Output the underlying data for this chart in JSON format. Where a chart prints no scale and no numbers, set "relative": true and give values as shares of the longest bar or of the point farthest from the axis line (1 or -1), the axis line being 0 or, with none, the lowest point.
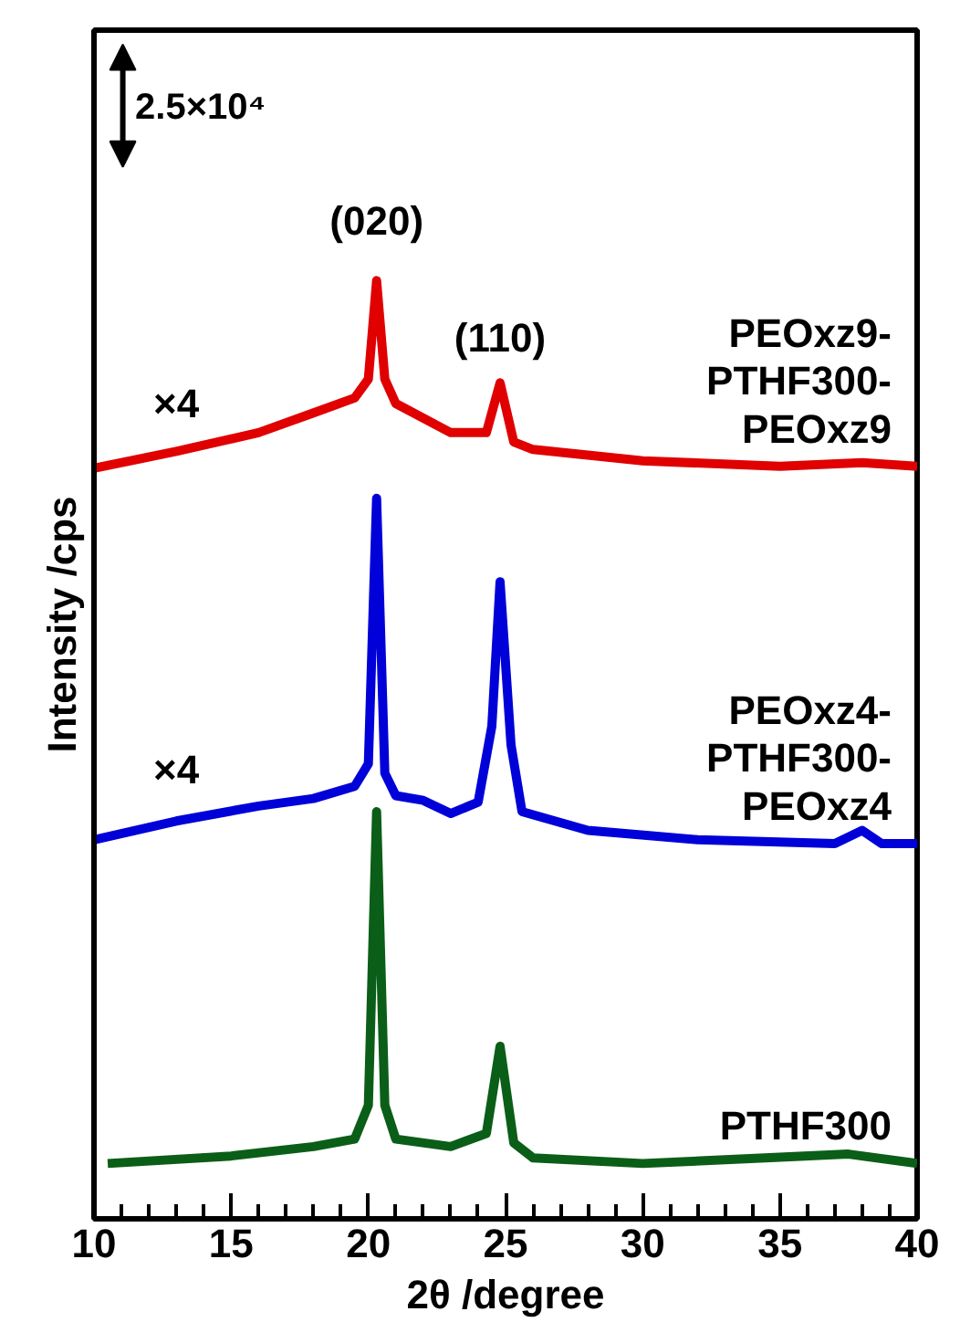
{
  "chart_data": {
    "type": "line",
    "relative": true,
    "xlabel": "2θ /degree",
    "ylabel": "Intensity /cps",
    "xlim": [
      10,
      40
    ],
    "xticks": [
      10,
      15,
      20,
      25,
      30,
      35,
      40
    ],
    "grid": false,
    "legend": false,
    "tick_labels": "x",
    "marker": "none",
    "line_style": "solid",
    "series": [
      {
        "name": "PEOxz9-PTHF300-PEOxz9",
        "color": "#e00000",
        "x": [
          10,
          13,
          16,
          18,
          19.5,
          20.0,
          20.3,
          20.6,
          21,
          23,
          24.3,
          24.8,
          25.3,
          26,
          30,
          35,
          38,
          40
        ],
        "values": [
          0.8,
          0.818,
          0.838,
          0.859,
          0.875,
          0.895,
          1.0,
          0.895,
          0.869,
          0.838,
          0.838,
          0.891,
          0.828,
          0.82,
          0.808,
          0.802,
          0.806,
          0.802
        ]
      },
      {
        "name": "PEOxz4-PTHF300-PEOxz4",
        "color": "#0000d8",
        "x": [
          10,
          13,
          16,
          18,
          19.5,
          20.0,
          20.3,
          20.6,
          21,
          22,
          23,
          24,
          24.5,
          24.8,
          25.2,
          25.6,
          28,
          32,
          37,
          38,
          38.7,
          40
        ],
        "values": [
          0.404,
          0.424,
          0.44,
          0.448,
          0.461,
          0.485,
          0.768,
          0.475,
          0.451,
          0.446,
          0.432,
          0.444,
          0.525,
          0.679,
          0.505,
          0.434,
          0.414,
          0.404,
          0.4,
          0.414,
          0.4,
          0.4
        ]
      },
      {
        "name": "PTHF300",
        "color": "#0b5e18",
        "x": [
          10.5,
          15,
          18,
          19.5,
          20.0,
          20.3,
          20.6,
          21,
          23,
          24.3,
          24.8,
          25.3,
          26,
          30,
          37.5,
          40
        ],
        "values": [
          0.059,
          0.067,
          0.077,
          0.085,
          0.121,
          0.434,
          0.121,
          0.085,
          0.077,
          0.091,
          0.184,
          0.081,
          0.065,
          0.059,
          0.069,
          0.059
        ]
      }
    ],
    "annotations": [
      "(020)",
      "(110)",
      "×4",
      "×4",
      "2.5×10⁴"
    ]
  }
}
